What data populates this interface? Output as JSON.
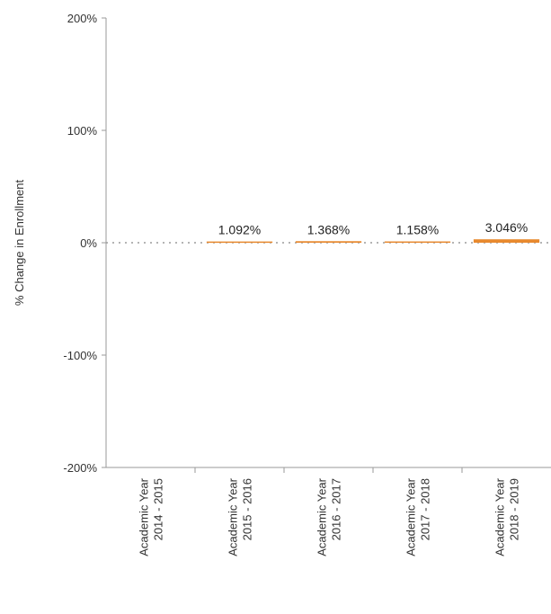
{
  "chart_data": {
    "type": "bar",
    "title": "",
    "xlabel": "",
    "ylabel": "% Change in Enrollment",
    "ylim": [
      -200,
      200
    ],
    "y_ticks": [
      200,
      100,
      0,
      -100,
      -200
    ],
    "y_tick_labels": [
      "200%",
      "100%",
      "0%",
      "-100%",
      "-200%"
    ],
    "categories": [
      "Academic Year 2014 - 2015",
      "Academic Year 2015 - 2016",
      "Academic Year 2016 - 2017",
      "Academic Year 2017 - 2018",
      "Academic Year 2018 - 2019"
    ],
    "category_lines": [
      [
        "Academic Year",
        "2014 - 2015"
      ],
      [
        "Academic Year",
        "2015 - 2016"
      ],
      [
        "Academic Year",
        "2016 - 2017"
      ],
      [
        "Academic Year",
        "2017 - 2018"
      ],
      [
        "Academic Year",
        "2018 - 2019"
      ]
    ],
    "values": [
      null,
      1.092,
      1.368,
      1.158,
      3.046
    ],
    "data_labels": [
      "",
      "1.092%",
      "1.368%",
      "1.158%",
      "3.046%"
    ],
    "bar_color": "#e8892e",
    "zero_line": "dotted",
    "grid": false,
    "legend": "none"
  }
}
